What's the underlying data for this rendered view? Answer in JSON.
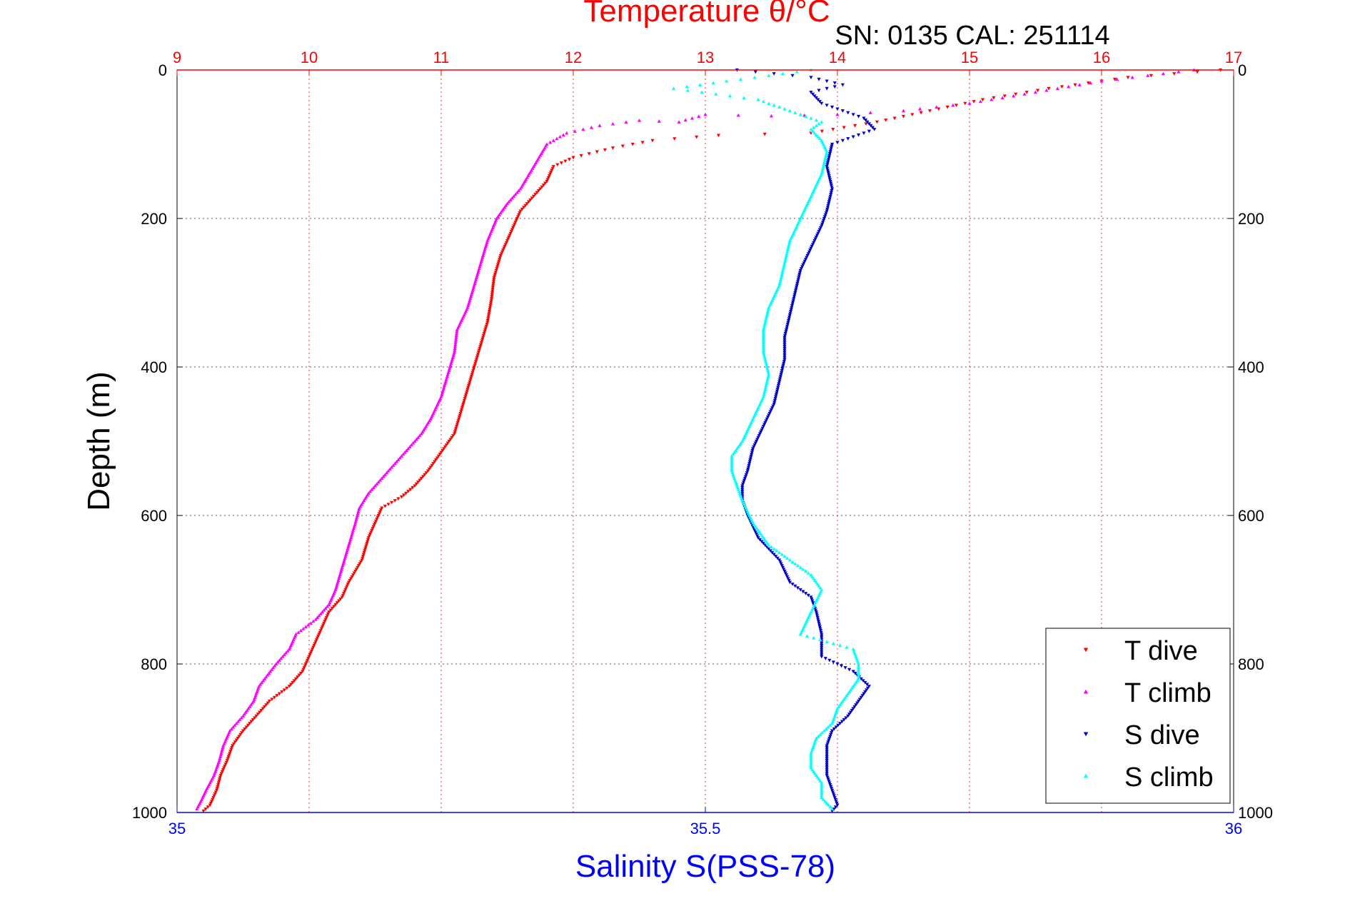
{
  "chart_data": {
    "type": "scatter",
    "title": "Temperature θ/°C",
    "subtitle": "SN: 0135  CAL: 251114",
    "ylabel": "Depth (m)",
    "xlabel_bottom": "Salinity S(PSS-78)",
    "xlabel_top": "Temperature θ/°C",
    "ylim": [
      1000,
      0
    ],
    "yticks": [
      0,
      200,
      400,
      600,
      800,
      1000
    ],
    "ytick_labels": [
      "0",
      "200",
      "400",
      "600",
      "800",
      "1000"
    ],
    "temp_xlim": [
      9,
      17
    ],
    "temp_ticks": [
      9,
      10,
      11,
      12,
      13,
      14,
      15,
      16,
      17
    ],
    "temp_tick_labels": [
      "9",
      "10",
      "11",
      "12",
      "13",
      "14",
      "15",
      "16",
      "17"
    ],
    "sal_xlim": [
      35,
      36
    ],
    "sal_ticks": [
      35,
      35.5,
      36
    ],
    "sal_tick_labels": [
      "35",
      "35.5",
      "36"
    ],
    "grid": true,
    "legend_position": "bottom-right",
    "colors": {
      "temp_axis": "#ff0000",
      "sal_axis": "#0000ff",
      "t_dive": "#ff0000",
      "t_climb": "#ff00ff",
      "s_dive": "#0000cc",
      "s_climb": "#00ffff",
      "grid_temp": "#ff3333",
      "grid_depth": "#555555"
    },
    "series": [
      {
        "name": "T dive",
        "axis": "temperature",
        "marker": "down-triangle",
        "points": [
          [
            16.9,
            0
          ],
          [
            16.2,
            10
          ],
          [
            15.6,
            25
          ],
          [
            15.1,
            40
          ],
          [
            14.7,
            55
          ],
          [
            14.3,
            70
          ],
          [
            13.8,
            85
          ],
          [
            13.1,
            88
          ],
          [
            12.6,
            95
          ],
          [
            12.3,
            105
          ],
          [
            12.0,
            118
          ],
          [
            11.85,
            130
          ],
          [
            11.8,
            150
          ],
          [
            11.7,
            170
          ],
          [
            11.6,
            190
          ],
          [
            11.55,
            210
          ],
          [
            11.5,
            230
          ],
          [
            11.45,
            250
          ],
          [
            11.4,
            280
          ],
          [
            11.38,
            310
          ],
          [
            11.35,
            340
          ],
          [
            11.3,
            370
          ],
          [
            11.25,
            400
          ],
          [
            11.2,
            430
          ],
          [
            11.15,
            460
          ],
          [
            11.1,
            490
          ],
          [
            11.0,
            515
          ],
          [
            10.9,
            540
          ],
          [
            10.8,
            560
          ],
          [
            10.7,
            575
          ],
          [
            10.55,
            590
          ],
          [
            10.5,
            610
          ],
          [
            10.45,
            630
          ],
          [
            10.4,
            660
          ],
          [
            10.3,
            690
          ],
          [
            10.25,
            710
          ],
          [
            10.15,
            730
          ],
          [
            10.1,
            750
          ],
          [
            10.05,
            770
          ],
          [
            10.0,
            790
          ],
          [
            9.95,
            810
          ],
          [
            9.85,
            830
          ],
          [
            9.7,
            850
          ],
          [
            9.6,
            870
          ],
          [
            9.5,
            890
          ],
          [
            9.42,
            910
          ],
          [
            9.38,
            930
          ],
          [
            9.33,
            950
          ],
          [
            9.3,
            970
          ],
          [
            9.25,
            990
          ],
          [
            9.2,
            998
          ]
        ]
      },
      {
        "name": "T climb",
        "axis": "temperature",
        "marker": "up-triangle",
        "points": [
          [
            16.7,
            0
          ],
          [
            16.0,
            15
          ],
          [
            15.5,
            30
          ],
          [
            15.0,
            45
          ],
          [
            14.5,
            55
          ],
          [
            14.0,
            60
          ],
          [
            13.5,
            62
          ],
          [
            13.0,
            60
          ],
          [
            12.8,
            70
          ],
          [
            12.5,
            68
          ],
          [
            12.2,
            75
          ],
          [
            11.95,
            85
          ],
          [
            11.8,
            100
          ],
          [
            11.7,
            130
          ],
          [
            11.6,
            160
          ],
          [
            11.5,
            180
          ],
          [
            11.42,
            200
          ],
          [
            11.35,
            230
          ],
          [
            11.3,
            260
          ],
          [
            11.25,
            290
          ],
          [
            11.2,
            320
          ],
          [
            11.12,
            350
          ],
          [
            11.1,
            380
          ],
          [
            11.05,
            410
          ],
          [
            11.0,
            440
          ],
          [
            10.92,
            470
          ],
          [
            10.85,
            490
          ],
          [
            10.75,
            510
          ],
          [
            10.65,
            530
          ],
          [
            10.55,
            550
          ],
          [
            10.45,
            570
          ],
          [
            10.38,
            590
          ],
          [
            10.35,
            610
          ],
          [
            10.3,
            640
          ],
          [
            10.25,
            670
          ],
          [
            10.2,
            700
          ],
          [
            10.15,
            720
          ],
          [
            10.05,
            740
          ],
          [
            9.9,
            760
          ],
          [
            9.85,
            780
          ],
          [
            9.75,
            800
          ],
          [
            9.62,
            830
          ],
          [
            9.58,
            850
          ],
          [
            9.5,
            870
          ],
          [
            9.4,
            890
          ],
          [
            9.35,
            910
          ],
          [
            9.32,
            930
          ],
          [
            9.28,
            950
          ],
          [
            9.22,
            970
          ],
          [
            9.18,
            985
          ],
          [
            9.15,
            995
          ]
        ]
      },
      {
        "name": "S dive",
        "axis": "salinity",
        "marker": "down-triangle",
        "points": [
          [
            35.53,
            0
          ],
          [
            35.6,
            10
          ],
          [
            35.63,
            20
          ],
          [
            35.6,
            30
          ],
          [
            35.61,
            45
          ],
          [
            35.63,
            55
          ],
          [
            35.65,
            65
          ],
          [
            35.66,
            80
          ],
          [
            35.62,
            100
          ],
          [
            35.615,
            130
          ],
          [
            35.62,
            160
          ],
          [
            35.615,
            190
          ],
          [
            35.61,
            210
          ],
          [
            35.6,
            240
          ],
          [
            35.59,
            270
          ],
          [
            35.585,
            300
          ],
          [
            35.58,
            330
          ],
          [
            35.575,
            360
          ],
          [
            35.575,
            390
          ],
          [
            35.57,
            420
          ],
          [
            35.565,
            450
          ],
          [
            35.555,
            480
          ],
          [
            35.545,
            510
          ],
          [
            35.54,
            540
          ],
          [
            35.535,
            560
          ],
          [
            35.535,
            580
          ],
          [
            35.54,
            600
          ],
          [
            35.55,
            630
          ],
          [
            35.57,
            660
          ],
          [
            35.58,
            690
          ],
          [
            35.6,
            710
          ],
          [
            35.605,
            730
          ],
          [
            35.61,
            760
          ],
          [
            35.61,
            790
          ],
          [
            35.64,
            810
          ],
          [
            35.655,
            830
          ],
          [
            35.645,
            850
          ],
          [
            35.635,
            870
          ],
          [
            35.62,
            890
          ],
          [
            35.615,
            910
          ],
          [
            35.615,
            930
          ],
          [
            35.615,
            950
          ],
          [
            35.62,
            970
          ],
          [
            35.625,
            990
          ],
          [
            35.62,
            998
          ]
        ]
      },
      {
        "name": "S climb",
        "axis": "salinity",
        "marker": "up-triangle",
        "points": [
          [
            35.6,
            0
          ],
          [
            35.52,
            15
          ],
          [
            35.47,
            25
          ],
          [
            35.55,
            40
          ],
          [
            35.58,
            55
          ],
          [
            35.61,
            70
          ],
          [
            35.6,
            80
          ],
          [
            35.61,
            95
          ],
          [
            35.615,
            110
          ],
          [
            35.61,
            140
          ],
          [
            35.6,
            170
          ],
          [
            35.59,
            200
          ],
          [
            35.58,
            230
          ],
          [
            35.575,
            260
          ],
          [
            35.57,
            290
          ],
          [
            35.56,
            320
          ],
          [
            35.555,
            350
          ],
          [
            35.555,
            380
          ],
          [
            35.56,
            410
          ],
          [
            35.555,
            440
          ],
          [
            35.545,
            470
          ],
          [
            35.535,
            500
          ],
          [
            35.525,
            520
          ],
          [
            35.525,
            540
          ],
          [
            35.53,
            560
          ],
          [
            35.535,
            580
          ],
          [
            35.545,
            610
          ],
          [
            35.56,
            640
          ],
          [
            35.58,
            660
          ],
          [
            35.6,
            680
          ],
          [
            35.61,
            700
          ],
          [
            35.6,
            730
          ],
          [
            35.59,
            760
          ],
          [
            35.64,
            780
          ],
          [
            35.645,
            800
          ],
          [
            35.645,
            820
          ],
          [
            35.635,
            840
          ],
          [
            35.625,
            860
          ],
          [
            35.62,
            880
          ],
          [
            35.605,
            900
          ],
          [
            35.6,
            920
          ],
          [
            35.6,
            940
          ],
          [
            35.61,
            960
          ],
          [
            35.61,
            980
          ],
          [
            35.62,
            995
          ]
        ]
      }
    ],
    "legend_entries": [
      "T dive",
      "T climb",
      "S dive",
      "S climb"
    ]
  }
}
